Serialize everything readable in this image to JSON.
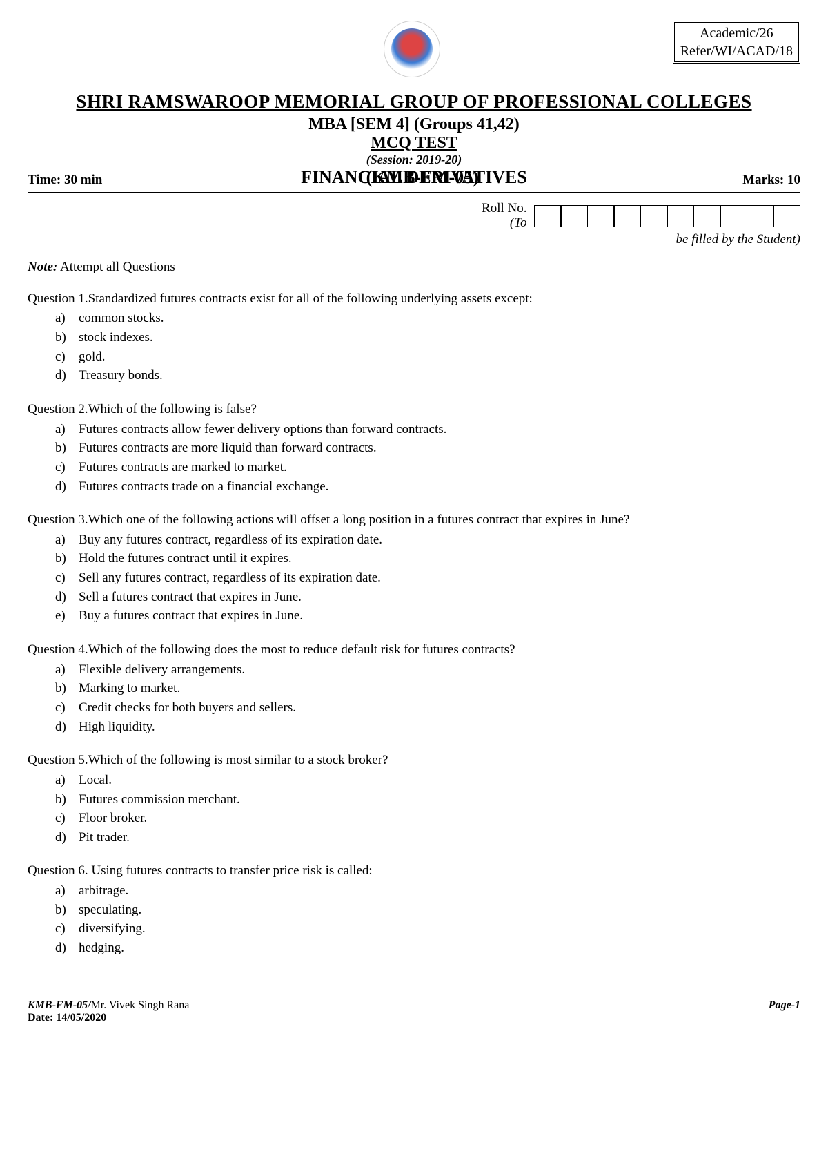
{
  "header": {
    "ref_line1": "Academic/26",
    "ref_line2": "Refer/WI/ACAD/18",
    "college": "SHRI RAMSWAROOP MEMORIAL GROUP OF PROFESSIONAL COLLEGES",
    "program": "MBA [SEM 4] (Groups 41,42)",
    "test_type": "MCQ TEST",
    "session": "(Session: 2019-20)",
    "subject": "FINANCIAL DERIVATIVES",
    "code": "(KMB-FM-05)",
    "time": "Time: 30 min",
    "marks": "Marks: 10",
    "roll_label": "Roll No.",
    "roll_to": "(To",
    "fill_note": "be filled by the Student)",
    "roll_cells": 10
  },
  "note_label": "Note:",
  "note_text": " Attempt all Questions",
  "questions": [
    {
      "text": "Question 1.Standardized futures contracts exist for all of the following underlying assets except:",
      "options": [
        {
          "l": "a)",
          "t": "common stocks."
        },
        {
          "l": "b)",
          "t": "stock indexes."
        },
        {
          "l": "c)",
          "t": "gold."
        },
        {
          "l": "d)",
          "t": "Treasury bonds."
        }
      ]
    },
    {
      "text": "Question 2.Which of the following is false?",
      "options": [
        {
          "l": "a)",
          "t": "Futures contracts allow fewer delivery options than forward contracts."
        },
        {
          "l": "b)",
          "t": "Futures contracts are more liquid than forward contracts."
        },
        {
          "l": "c)",
          "t": "Futures contracts are marked to market."
        },
        {
          "l": "d)",
          "t": "Futures contracts trade on a financial exchange."
        }
      ]
    },
    {
      "text": "Question 3.Which one of the following actions will offset a long position in a futures contract that expires in June?",
      "options": [
        {
          "l": "a)",
          "t": "Buy any futures contract, regardless of its expiration date."
        },
        {
          "l": "b)",
          "t": "Hold the futures contract until it expires."
        },
        {
          "l": "c)",
          "t": "Sell any futures contract, regardless of its expiration date."
        },
        {
          "l": "d)",
          "t": "Sell a futures contract that expires in June."
        },
        {
          "l": "e)",
          "t": "Buy a futures contract that expires in June."
        }
      ]
    },
    {
      "text": "Question 4.Which of the following does the most to reduce default risk for futures contracts?",
      "options": [
        {
          "l": "a)",
          "t": "Flexible delivery arrangements."
        },
        {
          "l": "b)",
          "t": "Marking to market."
        },
        {
          "l": "c)",
          "t": "Credit checks for both buyers and sellers."
        },
        {
          "l": "d)",
          "t": "High liquidity."
        }
      ]
    },
    {
      "text": "Question 5.Which of the following is most similar to a stock broker?",
      "options": [
        {
          "l": "a)",
          "t": "Local."
        },
        {
          "l": "b)",
          "t": "Futures commission merchant."
        },
        {
          "l": "c)",
          "t": "Floor broker."
        },
        {
          "l": "d)",
          "t": "Pit trader."
        }
      ]
    },
    {
      "text": "Question 6. Using futures contracts to transfer price risk is called:",
      "options": [
        {
          "l": "a)",
          "t": "arbitrage."
        },
        {
          "l": "b)",
          "t": "speculating."
        },
        {
          "l": "c)",
          "t": "diversifying."
        },
        {
          "l": "d)",
          "t": "hedging."
        }
      ]
    }
  ],
  "footer": {
    "code": "KMB-FM-05/",
    "author": "Mr. Vivek Singh Rana",
    "date_label": "Date:   ",
    "date": "14/05/2020",
    "page": "Page-1"
  }
}
